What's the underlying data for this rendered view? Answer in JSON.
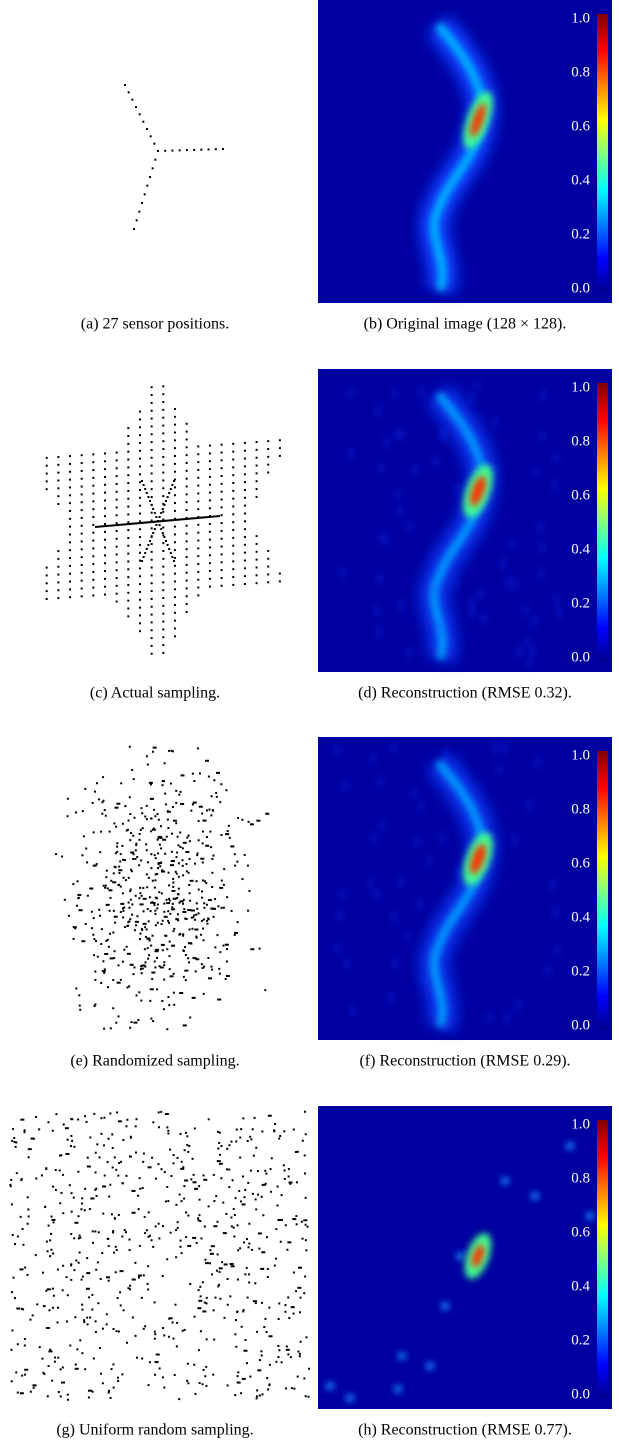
{
  "panels": [
    {
      "caption": "(a)  27 sensor positions."
    },
    {
      "caption": "(b)  Original image (128 × 128)."
    },
    {
      "caption": "(c)  Actual sampling."
    },
    {
      "caption": "(d)  Reconstruction (RMSE 0.32)."
    },
    {
      "caption": "(e)  Randomized sampling."
    },
    {
      "caption": "(f)  Reconstruction (RMSE 0.29)."
    },
    {
      "caption": "(g)  Uniform random sampling."
    },
    {
      "caption": "(h)  Reconstruction (RMSE 0.77)."
    }
  ],
  "colorbar": {
    "ticks": [
      "1.0",
      "0.8",
      "0.6",
      "0.4",
      "0.2",
      "0.0"
    ]
  }
}
